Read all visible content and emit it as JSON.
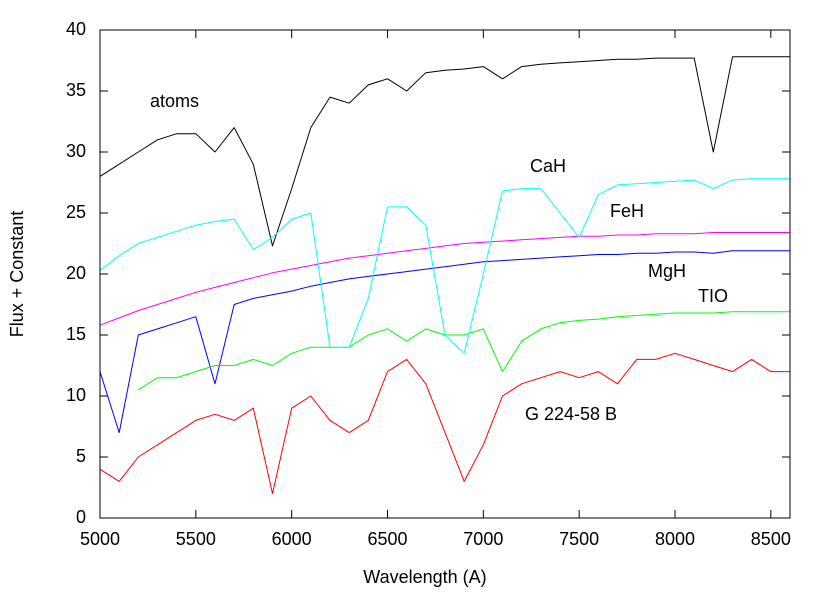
{
  "chart_data": {
    "type": "line",
    "xlabel": "Wavelength (A)",
    "ylabel": "Flux + Constant",
    "xlim": [
      5000,
      8600
    ],
    "ylim": [
      0,
      40
    ],
    "xticks": [
      5000,
      5500,
      6000,
      6500,
      7000,
      7500,
      8000,
      8500
    ],
    "yticks": [
      0,
      5,
      10,
      15,
      20,
      25,
      30,
      35,
      40
    ],
    "x": [
      5000,
      5100,
      5200,
      5300,
      5400,
      5500,
      5600,
      5700,
      5800,
      5900,
      6000,
      6100,
      6200,
      6300,
      6400,
      6500,
      6600,
      6700,
      6800,
      6900,
      7000,
      7100,
      7200,
      7300,
      7400,
      7500,
      7600,
      7700,
      7800,
      7900,
      8000,
      8100,
      8200,
      8300,
      8400,
      8500,
      8600
    ],
    "series": [
      {
        "name": "atoms",
        "color": "#000000",
        "values": [
          28,
          29,
          30,
          31,
          31.5,
          31.5,
          30,
          32,
          29,
          22.3,
          27,
          32,
          34.5,
          34,
          35.5,
          36,
          35,
          36.5,
          36.7,
          36.8,
          37,
          36,
          37,
          37.2,
          37.3,
          37.4,
          37.5,
          37.6,
          37.6,
          37.7,
          37.7,
          37.7,
          30,
          37.8,
          37.8,
          37.8,
          37.8
        ]
      },
      {
        "name": "FeH",
        "color": "#ff00ff",
        "values": [
          15.8,
          16.4,
          17,
          17.5,
          18,
          18.5,
          18.9,
          19.3,
          19.7,
          20.1,
          20.4,
          20.7,
          21,
          21.3,
          21.5,
          21.7,
          21.9,
          22.1,
          22.3,
          22.5,
          22.6,
          22.7,
          22.8,
          22.9,
          23,
          23.1,
          23.1,
          23.2,
          23.2,
          23.3,
          23.3,
          23.3,
          23.4,
          23.4,
          23.4,
          23.4,
          23.4
        ]
      },
      {
        "name": "MgH",
        "color": "#0000ff",
        "values": [
          12,
          7,
          15,
          15.5,
          16,
          16.5,
          11,
          17.5,
          18,
          18.3,
          18.6,
          19,
          19.3,
          19.6,
          19.8,
          20,
          20.2,
          20.4,
          20.6,
          20.8,
          21,
          21.1,
          21.2,
          21.3,
          21.4,
          21.5,
          21.6,
          21.6,
          21.7,
          21.7,
          21.8,
          21.8,
          21.7,
          21.9,
          21.9,
          21.9,
          21.9
        ]
      },
      {
        "name": "TIO",
        "color": "#00ff00",
        "values": [
          null,
          null,
          10.5,
          11.5,
          11.5,
          12,
          12.5,
          12.5,
          13,
          12.5,
          13.5,
          14,
          14,
          14,
          15,
          15.5,
          14.5,
          15.5,
          15,
          15,
          15.5,
          12,
          14.5,
          15.5,
          16,
          16.2,
          16.3,
          16.5,
          16.6,
          16.7,
          16.8,
          16.8,
          16.8,
          16.9,
          16.9,
          16.9,
          16.9
        ]
      },
      {
        "name": "CaH",
        "color": "#00ffff",
        "values": [
          20.3,
          21.5,
          22.5,
          23,
          23.5,
          24,
          24.3,
          24.5,
          22,
          23,
          24.5,
          25,
          14,
          14,
          18,
          25.5,
          25.5,
          24,
          15,
          13.5,
          20,
          26.8,
          27,
          27,
          25,
          23,
          26.5,
          27.3,
          27.4,
          27.5,
          27.6,
          27.7,
          27,
          27.7,
          27.8,
          27.8,
          27.8
        ]
      },
      {
        "name": "G 224-58 B",
        "color": "#ff0000",
        "values": [
          4,
          3,
          5,
          6,
          7,
          8,
          8.5,
          8,
          9,
          2,
          9,
          10,
          8,
          7,
          8,
          12,
          13,
          11,
          7,
          3,
          6,
          10,
          11,
          11.5,
          12,
          11.5,
          12,
          11,
          13,
          13,
          13.5,
          13,
          12.5,
          12,
          13,
          12,
          12
        ]
      }
    ]
  }
}
